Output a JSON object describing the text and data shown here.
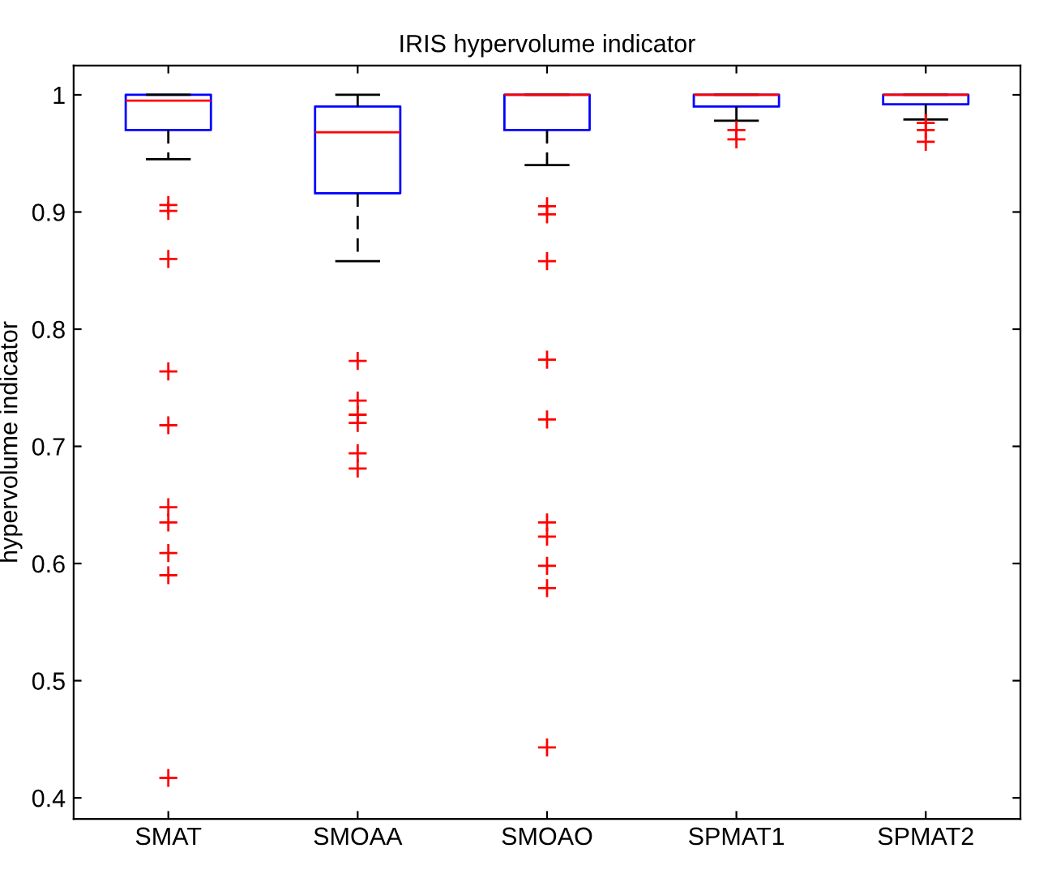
{
  "chart_data": {
    "type": "box",
    "title": "IRIS hypervolume indicator",
    "ylabel": "hypervolume indicator",
    "categories": [
      "SMAT",
      "SMOAA",
      "SMOAO",
      "SPMAT1",
      "SPMAT2"
    ],
    "series": [
      {
        "color": "#0000ff",
        "boxes": [
          {
            "low": 0.945,
            "q1": 0.97,
            "median": 0.995,
            "q3": 1.0,
            "high": 1.0,
            "outliers": [
              0.906,
              0.901,
              0.86,
              0.764,
              0.718,
              0.648,
              0.635,
              0.609,
              0.59,
              0.417
            ]
          },
          {
            "low": 0.858,
            "q1": 0.916,
            "median": 0.968,
            "q3": 0.99,
            "high": 1.0,
            "outliers": [
              0.773,
              0.739,
              0.727,
              0.72,
              0.694,
              0.681
            ]
          },
          {
            "low": 0.94,
            "q1": 0.97,
            "median": 1.0,
            "q3": 1.0,
            "high": 1.0,
            "outliers": [
              0.905,
              0.898,
              0.858,
              0.774,
              0.723,
              0.635,
              0.623,
              0.598,
              0.579,
              0.443
            ]
          },
          {
            "low": 0.978,
            "q1": 0.99,
            "median": 1.0,
            "q3": 1.0,
            "high": 1.0,
            "outliers": [
              0.97,
              0.962
            ]
          },
          {
            "low": 0.979,
            "q1": 0.992,
            "median": 1.0,
            "q3": 1.0,
            "high": 1.0,
            "outliers": [
              0.976,
              0.97,
              0.96
            ]
          }
        ]
      }
    ],
    "ylim": [
      0.382,
      1.025
    ],
    "yticks": [
      0.4,
      0.5,
      0.6,
      0.7,
      0.8,
      0.9,
      {
        "value": 1,
        "label": "1"
      }
    ],
    "marker": "cross",
    "grid": false,
    "legend": false
  }
}
